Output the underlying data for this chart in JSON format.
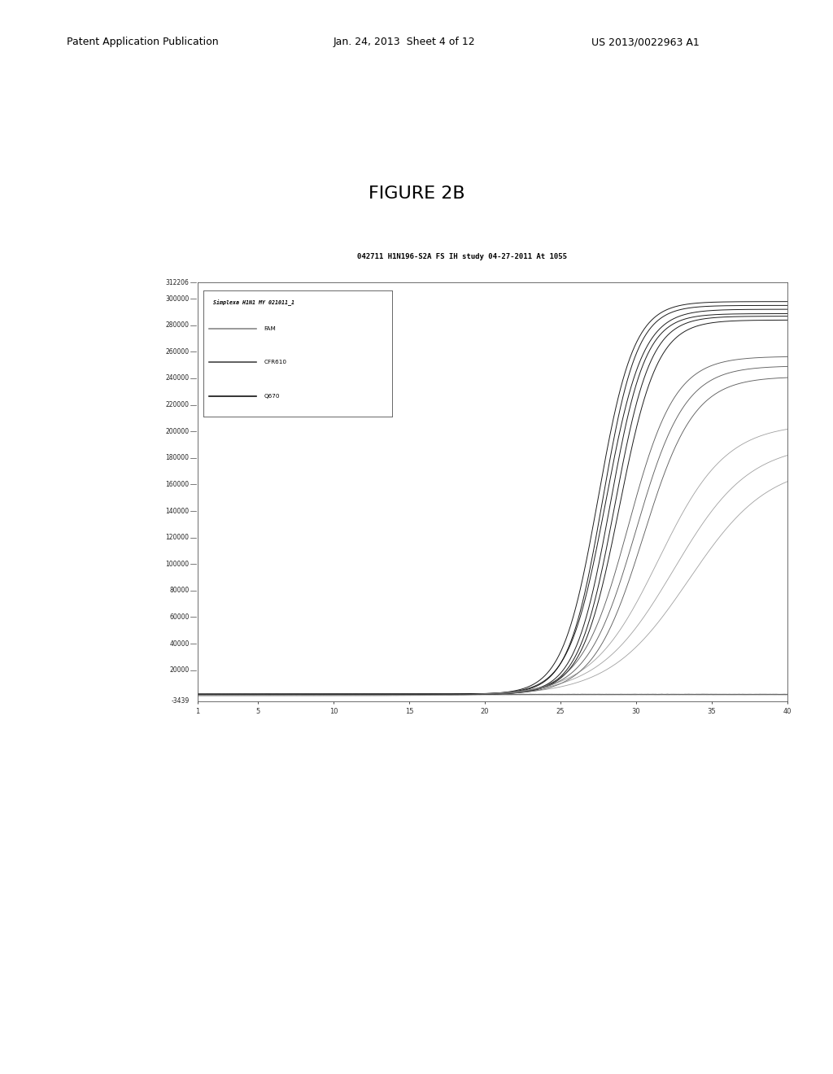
{
  "title": "042711 H1N196-S2A FS IH study 04-27-2011 At 1055",
  "figure_title": "FIGURE 2B",
  "legend_title": "Simplexa H1N1 MY 021011_1",
  "legend_entries": [
    "FAM",
    "CFR610",
    "Q670"
  ],
  "x_min": 1,
  "x_max": 40,
  "y_min": -3439,
  "y_max": 312206,
  "y_ticks": [
    -3439,
    20000,
    40000,
    60000,
    80000,
    100000,
    120000,
    140000,
    160000,
    180000,
    200000,
    220000,
    240000,
    260000,
    280000,
    300000,
    312206
  ],
  "x_ticks": [
    1,
    5,
    10,
    15,
    20,
    25,
    30,
    35,
    40
  ],
  "outer_bg": "#c0c0c0",
  "plot_bg": "#ffffff",
  "header_bg": "#b8b8b8",
  "patent_header": "Patent Application Publication",
  "patent_date": "Jan. 24, 2013  Sheet 4 of 12",
  "patent_number": "US 2013/0022963 A1",
  "dark_curve_params": [
    [
      27.5,
      0.85,
      1800,
      296000
    ],
    [
      27.8,
      0.88,
      1900,
      293000
    ],
    [
      28.0,
      0.82,
      2000,
      290000
    ],
    [
      28.3,
      0.86,
      1700,
      287000
    ],
    [
      28.6,
      0.84,
      1800,
      285000
    ],
    [
      28.9,
      0.8,
      1900,
      282000
    ]
  ],
  "medium_curve_params": [
    [
      29.5,
      0.65,
      1500,
      255000
    ],
    [
      30.0,
      0.62,
      1400,
      248000
    ],
    [
      30.5,
      0.6,
      1300,
      240000
    ]
  ],
  "light_curve_params": [
    [
      31.5,
      0.45,
      1000,
      205000
    ],
    [
      32.5,
      0.4,
      900,
      190000
    ],
    [
      33.5,
      0.38,
      800,
      175000
    ]
  ]
}
